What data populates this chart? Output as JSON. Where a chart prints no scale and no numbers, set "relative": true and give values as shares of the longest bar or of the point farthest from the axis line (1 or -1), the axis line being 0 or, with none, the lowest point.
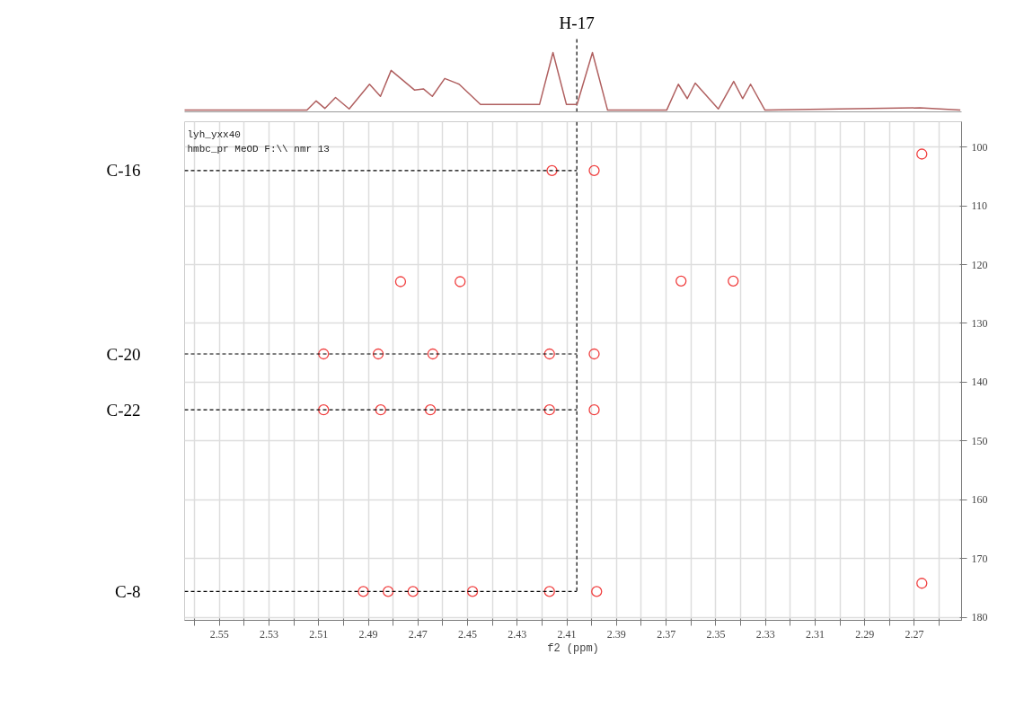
{
  "chart_data": [
    {
      "type": "line",
      "relative": true,
      "tick_labels": false,
      "grid": false,
      "xlim": [
        2.564,
        2.251
      ],
      "ref_lines": [
        {
          "axis": "x",
          "value": 2.406,
          "label": "H-17",
          "line_style": "dashed",
          "color": "#000000"
        }
      ],
      "series": [
        {
          "color": "#b06060",
          "x": [
            2.564,
            2.5147,
            2.511,
            2.5075,
            2.5032,
            2.4977,
            2.4895,
            2.4851,
            2.4808,
            2.4714,
            2.4678,
            2.4642,
            2.4592,
            2.4534,
            2.4448,
            2.421,
            2.4156,
            2.4102,
            2.4059,
            2.3997,
            2.3936,
            2.3698,
            2.3651,
            2.3615,
            2.3583,
            2.349,
            2.3428,
            2.3392,
            2.336,
            2.3302,
            2.2678,
            2.2515
          ],
          "values": [
            0,
            0,
            0.16,
            0.03,
            0.22,
            0.02,
            0.45,
            0.24,
            0.69,
            0.35,
            0.37,
            0.24,
            0.55,
            0.45,
            0.1,
            0.1,
            1,
            0.1,
            0.1,
            1,
            0,
            0,
            0.45,
            0.2,
            0.47,
            0.02,
            0.5,
            0.2,
            0.45,
            0,
            0.04,
            0
          ]
        }
      ]
    },
    {
      "type": "scatter",
      "marker": "circle",
      "grid": true,
      "xlabel": "f2 (ppm)",
      "xlim": [
        2.564,
        2.251
      ],
      "ylim": [
        180.5,
        95.7
      ],
      "xticks": [
        {
          "value": 2.56,
          "label": null
        },
        2.55,
        {
          "value": 2.54,
          "label": null
        },
        2.53,
        {
          "value": 2.52,
          "label": null
        },
        2.51,
        {
          "value": 2.5,
          "label": null
        },
        2.49,
        {
          "value": 2.48,
          "label": null
        },
        2.47,
        {
          "value": 2.46,
          "label": null
        },
        2.45,
        {
          "value": 2.44,
          "label": null
        },
        2.43,
        {
          "value": 2.42,
          "label": null
        },
        2.41,
        {
          "value": 2.4,
          "label": null
        },
        2.39,
        {
          "value": 2.38,
          "label": null
        },
        2.37,
        {
          "value": 2.36,
          "label": null
        },
        2.35,
        {
          "value": 2.34,
          "label": null
        },
        2.33,
        {
          "value": 2.32,
          "label": null
        },
        2.31,
        {
          "value": 2.3,
          "label": null
        },
        2.29,
        {
          "value": 2.28,
          "label": null
        },
        2.27,
        {
          "value": 2.26,
          "label": null
        }
      ],
      "yticks": [
        100,
        110,
        120,
        130,
        140,
        150,
        160,
        170,
        180
      ],
      "series": [
        {
          "color": "#f04040",
          "x": [
            2.416,
            2.399,
            2.267,
            2.364,
            2.343,
            2.477,
            2.453,
            2.508,
            2.486,
            2.464,
            2.417,
            2.399,
            2.508,
            2.485,
            2.465,
            2.417,
            2.399,
            2.492,
            2.482,
            2.472,
            2.448,
            2.417,
            2.398,
            2.267
          ],
          "values": [
            104.0,
            104.0,
            101.2,
            122.8,
            122.8,
            122.9,
            122.9,
            135.2,
            135.2,
            135.2,
            135.2,
            135.2,
            144.7,
            144.7,
            144.7,
            144.7,
            144.7,
            175.6,
            175.6,
            175.6,
            175.6,
            175.6,
            175.6,
            174.2
          ]
        }
      ],
      "ref_lines": [
        {
          "axis": "x",
          "value": 2.406,
          "line_style": "dashed",
          "color": "#000000"
        },
        {
          "axis": "y",
          "value": 104.0,
          "label": "C-16",
          "line_style": "dashed",
          "color": "#000000"
        },
        {
          "axis": "y",
          "value": 135.2,
          "label": "C-20",
          "line_style": "dashed",
          "color": "#000000"
        },
        {
          "axis": "y",
          "value": 144.7,
          "label": "C-22",
          "line_style": "dashed",
          "color": "#000000"
        },
        {
          "axis": "y",
          "value": 175.6,
          "label": "C-8",
          "line_style": "dashed",
          "color": "#000000"
        }
      ],
      "annotations": [
        "lyh_yxx40",
        "hmbc_pr MeOD F:\\\\ nmr 13"
      ]
    }
  ]
}
